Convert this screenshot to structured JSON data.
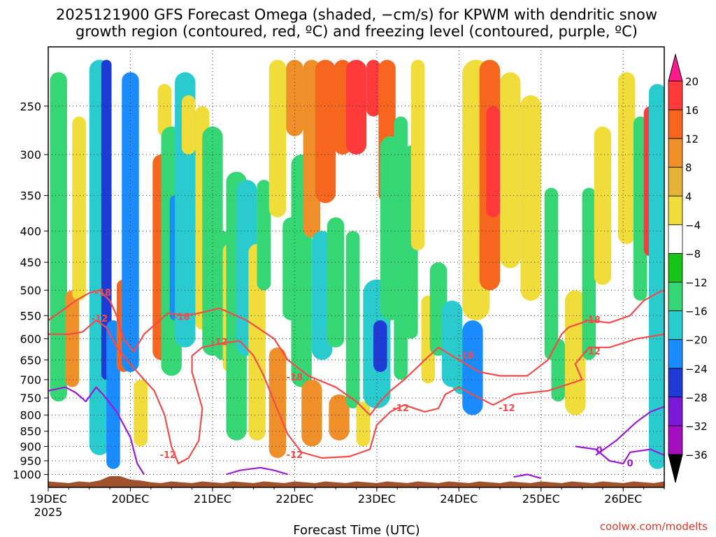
{
  "chart_data": {
    "type": "heatmap",
    "title_line1": "2025121900 GFS Forecast Omega (shaded, −cm/s) for KPWM with dendritic snow",
    "title_line2": "growth region (contoured, red, ºC) and freezing level (contoured, purple, ºC)",
    "xlabel": "Forecast Time (UTC)",
    "credit": "coolwx.com/modelts",
    "y_axis": {
      "variable": "pressure_hPa",
      "scale": "log",
      "range": [
        1050,
        200
      ],
      "ticks": [
        1000,
        950,
        900,
        850,
        800,
        750,
        700,
        650,
        600,
        550,
        500,
        450,
        400,
        350,
        300,
        250
      ]
    },
    "x_axis": {
      "range_hours": [
        0,
        180
      ],
      "ticks": [
        {
          "hour": 0,
          "label": "19DEC",
          "sublabel": "2025"
        },
        {
          "hour": 24,
          "label": "20DEC"
        },
        {
          "hour": 48,
          "label": "21DEC"
        },
        {
          "hour": 72,
          "label": "22DEC"
        },
        {
          "hour": 96,
          "label": "23DEC"
        },
        {
          "hour": 120,
          "label": "24DEC"
        },
        {
          "hour": 144,
          "label": "25DEC"
        },
        {
          "hour": 168,
          "label": "26DEC"
        }
      ]
    },
    "colorbar": {
      "labels": [
        "20",
        "16",
        "12",
        "8",
        "4",
        "−4",
        "−8",
        "−12",
        "−16",
        "−20",
        "−24",
        "−28",
        "−32",
        "−36"
      ],
      "colors": [
        "#ff1a8c",
        "#ff3a3a",
        "#f7661f",
        "#ef8f2a",
        "#e6b23a",
        "#f0dc3a",
        "#ffffff",
        "#17c417",
        "#36d675",
        "#29cbcf",
        "#1a8cff",
        "#1f3bd6",
        "#7a1ad6",
        "#a50fbf",
        "#a6a6a6",
        "#000000"
      ]
    },
    "omega_cells": [
      {
        "t": 3,
        "p0": 760,
        "p1": 220,
        "w": 2.5,
        "val": -10
      },
      {
        "t": 7,
        "p0": 720,
        "p1": 500,
        "w": 2,
        "val": 8
      },
      {
        "t": 9,
        "p0": 520,
        "p1": 260,
        "w": 2,
        "val": 5
      },
      {
        "t": 15,
        "p0": 930,
        "p1": 210,
        "w": 3,
        "val": -14
      },
      {
        "t": 17,
        "p0": 700,
        "p1": 210,
        "w": 1.5,
        "val": -22
      },
      {
        "t": 19,
        "p0": 980,
        "p1": 560,
        "w": 2,
        "val": -16
      },
      {
        "t": 22,
        "p0": 680,
        "p1": 480,
        "w": 2,
        "val": 12
      },
      {
        "t": 24,
        "p0": 680,
        "p1": 220,
        "w": 2.5,
        "val": -18
      },
      {
        "t": 27,
        "p0": 900,
        "p1": 700,
        "w": 2,
        "val": 5
      },
      {
        "t": 33,
        "p0": 650,
        "p1": 300,
        "w": 2.5,
        "val": 14
      },
      {
        "t": 34,
        "p0": 280,
        "p1": 230,
        "w": 2,
        "val": 6
      },
      {
        "t": 36,
        "p0": 690,
        "p1": 270,
        "w": 3,
        "val": -10
      },
      {
        "t": 37,
        "p0": 560,
        "p1": 350,
        "w": 1.5,
        "val": -18
      },
      {
        "t": 40,
        "p0": 620,
        "p1": 220,
        "w": 3,
        "val": -13
      },
      {
        "t": 41,
        "p0": 300,
        "p1": 240,
        "w": 2,
        "val": 6
      },
      {
        "t": 45,
        "p0": 580,
        "p1": 250,
        "w": 2,
        "val": 5
      },
      {
        "t": 48,
        "p0": 640,
        "p1": 270,
        "w": 3,
        "val": -11
      },
      {
        "t": 51,
        "p0": 650,
        "p1": 400,
        "w": 2.5,
        "val": -9
      },
      {
        "t": 53,
        "p0": 680,
        "p1": 420,
        "w": 2,
        "val": 5
      },
      {
        "t": 55,
        "p0": 880,
        "p1": 320,
        "w": 3,
        "val": -10
      },
      {
        "t": 58,
        "p0": 640,
        "p1": 330,
        "w": 3,
        "val": -12
      },
      {
        "t": 61,
        "p0": 880,
        "p1": 420,
        "w": 2.5,
        "val": 5
      },
      {
        "t": 63,
        "p0": 500,
        "p1": 330,
        "w": 2,
        "val": -9
      },
      {
        "t": 67,
        "p0": 380,
        "p1": 210,
        "w": 2.5,
        "val": 5
      },
      {
        "t": 67,
        "p0": 940,
        "p1": 620,
        "w": 2.5,
        "val": 8
      },
      {
        "t": 71,
        "p0": 560,
        "p1": 380,
        "w": 2.5,
        "val": -8
      },
      {
        "t": 72,
        "p0": 280,
        "p1": 210,
        "w": 2.5,
        "val": 8
      },
      {
        "t": 74,
        "p0": 720,
        "p1": 300,
        "w": 3,
        "val": -11
      },
      {
        "t": 77,
        "p0": 410,
        "p1": 210,
        "w": 2.5,
        "val": 11
      },
      {
        "t": 77,
        "p0": 900,
        "p1": 700,
        "w": 3,
        "val": 8
      },
      {
        "t": 80,
        "p0": 650,
        "p1": 400,
        "w": 3,
        "val": -12
      },
      {
        "t": 81,
        "p0": 360,
        "p1": 210,
        "w": 3,
        "val": 13
      },
      {
        "t": 84,
        "p0": 620,
        "p1": 380,
        "w": 2.5,
        "val": -10
      },
      {
        "t": 85,
        "p0": 880,
        "p1": 740,
        "w": 3,
        "val": 9
      },
      {
        "t": 86,
        "p0": 300,
        "p1": 210,
        "w": 2.5,
        "val": 15
      },
      {
        "t": 89,
        "p0": 780,
        "p1": 400,
        "w": 2,
        "val": -9
      },
      {
        "t": 90,
        "p0": 300,
        "p1": 210,
        "w": 3,
        "val": 16
      },
      {
        "t": 92,
        "p0": 900,
        "p1": 760,
        "w": 2,
        "val": 6
      },
      {
        "t": 95,
        "p0": 260,
        "p1": 210,
        "w": 2,
        "val": 18
      },
      {
        "t": 96,
        "p0": 780,
        "p1": 480,
        "w": 4,
        "val": -13
      },
      {
        "t": 97,
        "p0": 680,
        "p1": 560,
        "w": 2,
        "val": -22
      },
      {
        "t": 99,
        "p0": 360,
        "p1": 210,
        "w": 2.5,
        "val": 12
      },
      {
        "t": 100,
        "p0": 560,
        "p1": 280,
        "w": 3,
        "val": -10
      },
      {
        "t": 103,
        "p0": 700,
        "p1": 260,
        "w": 2,
        "val": -9
      },
      {
        "t": 106,
        "p0": 600,
        "p1": 290,
        "w": 2,
        "val": -9
      },
      {
        "t": 108,
        "p0": 430,
        "p1": 210,
        "w": 2,
        "val": 7
      },
      {
        "t": 111,
        "p0": 710,
        "p1": 510,
        "w": 2,
        "val": 5
      },
      {
        "t": 114,
        "p0": 640,
        "p1": 450,
        "w": 2.5,
        "val": -9
      },
      {
        "t": 118,
        "p0": 720,
        "p1": 520,
        "w": 3,
        "val": -12
      },
      {
        "t": 121,
        "p0": 740,
        "p1": 580,
        "w": 3,
        "val": -14
      },
      {
        "t": 124,
        "p0": 800,
        "p1": 560,
        "w": 3,
        "val": -16
      },
      {
        "t": 125,
        "p0": 560,
        "p1": 210,
        "w": 4,
        "val": 6
      },
      {
        "t": 129,
        "p0": 500,
        "p1": 210,
        "w": 3,
        "val": 15
      },
      {
        "t": 130,
        "p0": 380,
        "p1": 250,
        "w": 2,
        "val": 18
      },
      {
        "t": 135,
        "p0": 460,
        "p1": 220,
        "w": 3,
        "val": 6
      },
      {
        "t": 141,
        "p0": 520,
        "p1": 240,
        "w": 3,
        "val": 5
      },
      {
        "t": 147,
        "p0": 650,
        "p1": 340,
        "w": 2,
        "val": -10
      },
      {
        "t": 149,
        "p0": 760,
        "p1": 600,
        "w": 2,
        "val": -9
      },
      {
        "t": 154,
        "p0": 800,
        "p1": 500,
        "w": 3,
        "val": 5
      },
      {
        "t": 158,
        "p0": 650,
        "p1": 340,
        "w": 2,
        "val": -10
      },
      {
        "t": 162,
        "p0": 490,
        "p1": 270,
        "w": 2.5,
        "val": 5
      },
      {
        "t": 169,
        "p0": 420,
        "p1": 220,
        "w": 2.5,
        "val": 5
      },
      {
        "t": 173,
        "p0": 520,
        "p1": 260,
        "w": 2,
        "val": -10
      },
      {
        "t": 176,
        "p0": 440,
        "p1": 250,
        "w": 2,
        "val": 18
      },
      {
        "t": 178,
        "p0": 980,
        "p1": 230,
        "w": 2.5,
        "val": -12
      }
    ],
    "contours": [
      {
        "label": "-18",
        "color": "#f24b4b",
        "points": [
          [
            0,
            560
          ],
          [
            4,
            540
          ],
          [
            8,
            520
          ],
          [
            12,
            505
          ],
          [
            15,
            500
          ],
          [
            18,
            520
          ],
          [
            20,
            550
          ],
          [
            22,
            600
          ],
          [
            25,
            630
          ],
          [
            28,
            590
          ],
          [
            31,
            570
          ],
          [
            35,
            545
          ],
          [
            40,
            550
          ],
          [
            44,
            545
          ],
          [
            50,
            535
          ],
          [
            58,
            560
          ],
          [
            66,
            600
          ],
          [
            70,
            650
          ],
          [
            76,
            690
          ],
          [
            84,
            720
          ],
          [
            90,
            760
          ],
          [
            94,
            800
          ],
          [
            97,
            760
          ],
          [
            100,
            730
          ],
          [
            104,
            700
          ],
          [
            107,
            675
          ],
          [
            110,
            650
          ],
          [
            114,
            620
          ],
          [
            118,
            640
          ],
          [
            122,
            660
          ],
          [
            126,
            680
          ],
          [
            132,
            690
          ],
          [
            140,
            690
          ],
          [
            146,
            650
          ],
          [
            150,
            590
          ],
          [
            152,
            575
          ],
          [
            158,
            560
          ],
          [
            164,
            565
          ],
          [
            170,
            550
          ],
          [
            174,
            520
          ],
          [
            178,
            505
          ],
          [
            180,
            500
          ]
        ]
      },
      {
        "label": "-12",
        "color": "#f24b4b",
        "points": [
          [
            0,
            590
          ],
          [
            6,
            590
          ],
          [
            10,
            585
          ],
          [
            14,
            560
          ],
          [
            17,
            575
          ],
          [
            20,
            620
          ],
          [
            24,
            660
          ],
          [
            28,
            700
          ],
          [
            31,
            730
          ],
          [
            34,
            800
          ],
          [
            36,
            900
          ],
          [
            38,
            960
          ],
          [
            41,
            940
          ],
          [
            44,
            880
          ],
          [
            45,
            780
          ],
          [
            42,
            680
          ],
          [
            42,
            640
          ],
          [
            45,
            620
          ],
          [
            51,
            610
          ],
          [
            56,
            605
          ],
          [
            60,
            640
          ],
          [
            63,
            690
          ],
          [
            66,
            760
          ],
          [
            70,
            860
          ],
          [
            74,
            920
          ],
          [
            80,
            940
          ],
          [
            88,
            935
          ],
          [
            94,
            910
          ],
          [
            96,
            830
          ],
          [
            100,
            790
          ],
          [
            104,
            770
          ],
          [
            110,
            790
          ],
          [
            114,
            780
          ],
          [
            116,
            740
          ],
          [
            120,
            720
          ],
          [
            126,
            750
          ],
          [
            130,
            770
          ],
          [
            136,
            740
          ],
          [
            146,
            730
          ],
          [
            156,
            700
          ],
          [
            154,
            660
          ],
          [
            158,
            620
          ],
          [
            164,
            620
          ],
          [
            172,
            600
          ],
          [
            180,
            590
          ]
        ]
      },
      {
        "label": "0",
        "color": "#9a1ad6",
        "points": [
          [
            0,
            730
          ],
          [
            5,
            720
          ],
          [
            8,
            735
          ],
          [
            11,
            760
          ],
          [
            14,
            720
          ],
          [
            16,
            740
          ],
          [
            20,
            790
          ],
          [
            24,
            870
          ],
          [
            26,
            960
          ],
          [
            28,
            1000
          ]
        ]
      },
      {
        "label": "0",
        "color": "#9a1ad6",
        "points": [
          [
            52,
            1000
          ],
          [
            56,
            985
          ],
          [
            62,
            975
          ],
          [
            66,
            985
          ],
          [
            70,
            1000
          ]
        ]
      },
      {
        "label": "0",
        "color": "#9a1ad6",
        "points": [
          [
            136,
            1010
          ],
          [
            140,
            1000
          ],
          [
            144,
            1015
          ]
        ]
      },
      {
        "label": "0",
        "color": "#9a1ad6",
        "points": [
          [
            154,
            900
          ],
          [
            160,
            910
          ],
          [
            164,
            950
          ],
          [
            168,
            960
          ],
          [
            170,
            920
          ],
          [
            176,
            910
          ],
          [
            180,
            930
          ]
        ]
      },
      {
        "label": "0",
        "color": "#9a1ad6",
        "points": [
          [
            160,
            930
          ],
          [
            166,
            880
          ],
          [
            172,
            820
          ],
          [
            176,
            790
          ],
          [
            180,
            775
          ]
        ]
      }
    ],
    "inline_labels": [
      {
        "text": "-18",
        "t": 16,
        "p": 505,
        "color": "#f24b4b"
      },
      {
        "text": "-12",
        "t": 15,
        "p": 557,
        "color": "#f24b4b"
      },
      {
        "text": "-18",
        "t": 39,
        "p": 553,
        "color": "#f24b4b"
      },
      {
        "text": "-12",
        "t": 50,
        "p": 608,
        "color": "#f24b4b"
      },
      {
        "text": "-18",
        "t": 72,
        "p": 695,
        "color": "#f24b4b"
      },
      {
        "text": "-12",
        "t": 72,
        "p": 930,
        "color": "#f24b4b"
      },
      {
        "text": "-12",
        "t": 35,
        "p": 930,
        "color": "#f24b4b"
      },
      {
        "text": "-12",
        "t": 103,
        "p": 780,
        "color": "#f24b4b"
      },
      {
        "text": "-18",
        "t": 122,
        "p": 640,
        "color": "#f24b4b"
      },
      {
        "text": "-12",
        "t": 134,
        "p": 780,
        "color": "#f24b4b"
      },
      {
        "text": "-18",
        "t": 159,
        "p": 560,
        "color": "#f24b4b"
      },
      {
        "text": "-12",
        "t": 159,
        "p": 630,
        "color": "#f24b4b"
      },
      {
        "text": "0",
        "t": 161,
        "p": 915,
        "color": "#9a1ad6"
      },
      {
        "text": "0",
        "t": 170,
        "p": 960,
        "color": "#9a1ad6"
      }
    ]
  }
}
